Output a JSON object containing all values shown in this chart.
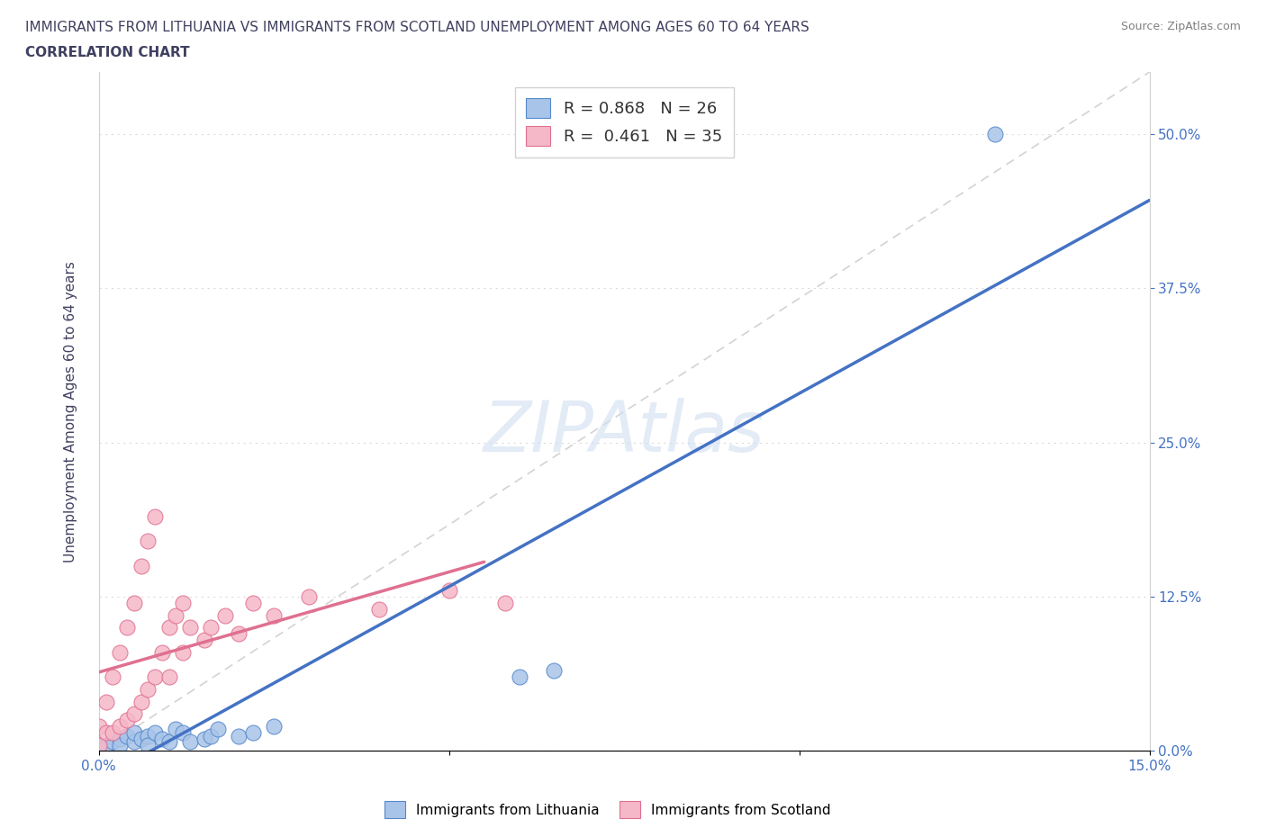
{
  "title_line1": "IMMIGRANTS FROM LITHUANIA VS IMMIGRANTS FROM SCOTLAND UNEMPLOYMENT AMONG AGES 60 TO 64 YEARS",
  "title_line2": "CORRELATION CHART",
  "source_text": "Source: ZipAtlas.com",
  "watermark": "ZIPAtlas",
  "ylabel": "Unemployment Among Ages 60 to 64 years",
  "xlim": [
    0.0,
    0.15
  ],
  "ylim": [
    0.0,
    0.55
  ],
  "yticks": [
    0.0,
    0.125,
    0.25,
    0.375,
    0.5
  ],
  "ytick_labels": [
    "0.0%",
    "12.5%",
    "25.0%",
    "37.5%",
    "50.0%"
  ],
  "xtick_positions": [
    0.0,
    0.05,
    0.1,
    0.15
  ],
  "xtick_labels": [
    "0.0%",
    "",
    "",
    "15.0%"
  ],
  "legend_R1": "R = 0.868",
  "legend_N1": "N = 26",
  "legend_R2": "R =  0.461",
  "legend_N2": "N = 35",
  "color_lithuania_fill": "#a8c4e8",
  "color_lithuania_edge": "#5588cc",
  "color_scotland_fill": "#f5b8c8",
  "color_scotland_edge": "#e07090",
  "color_line_lithuania": "#4472c4",
  "color_line_scotland": "#e07090",
  "color_ref_line": "#c8c8c8",
  "title_color": "#404060",
  "tick_color": "#4472c4",
  "background_color": "#ffffff",
  "grid_color": "#e0e0e0",
  "lit_x": [
    0.0,
    0.001,
    0.002,
    0.003,
    0.003,
    0.004,
    0.005,
    0.005,
    0.006,
    0.007,
    0.007,
    0.008,
    0.009,
    0.01,
    0.011,
    0.012,
    0.013,
    0.015,
    0.016,
    0.017,
    0.02,
    0.022,
    0.025,
    0.06,
    0.065,
    0.128
  ],
  "lit_y": [
    0.005,
    0.005,
    0.008,
    0.01,
    0.005,
    0.012,
    0.008,
    0.015,
    0.01,
    0.012,
    0.005,
    0.015,
    0.01,
    0.008,
    0.018,
    0.015,
    0.008,
    0.01,
    0.012,
    0.018,
    0.012,
    0.015,
    0.02,
    0.06,
    0.065,
    0.5
  ],
  "sco_x": [
    0.0,
    0.0,
    0.001,
    0.001,
    0.002,
    0.002,
    0.003,
    0.003,
    0.004,
    0.004,
    0.005,
    0.005,
    0.006,
    0.006,
    0.007,
    0.007,
    0.008,
    0.008,
    0.009,
    0.01,
    0.01,
    0.011,
    0.012,
    0.012,
    0.013,
    0.015,
    0.016,
    0.018,
    0.02,
    0.022,
    0.025,
    0.03,
    0.04,
    0.05,
    0.058
  ],
  "sco_y": [
    0.005,
    0.02,
    0.015,
    0.04,
    0.015,
    0.06,
    0.02,
    0.08,
    0.025,
    0.1,
    0.03,
    0.12,
    0.04,
    0.15,
    0.05,
    0.17,
    0.06,
    0.19,
    0.08,
    0.06,
    0.1,
    0.11,
    0.08,
    0.12,
    0.1,
    0.09,
    0.1,
    0.11,
    0.095,
    0.12,
    0.11,
    0.125,
    0.115,
    0.13,
    0.12
  ]
}
